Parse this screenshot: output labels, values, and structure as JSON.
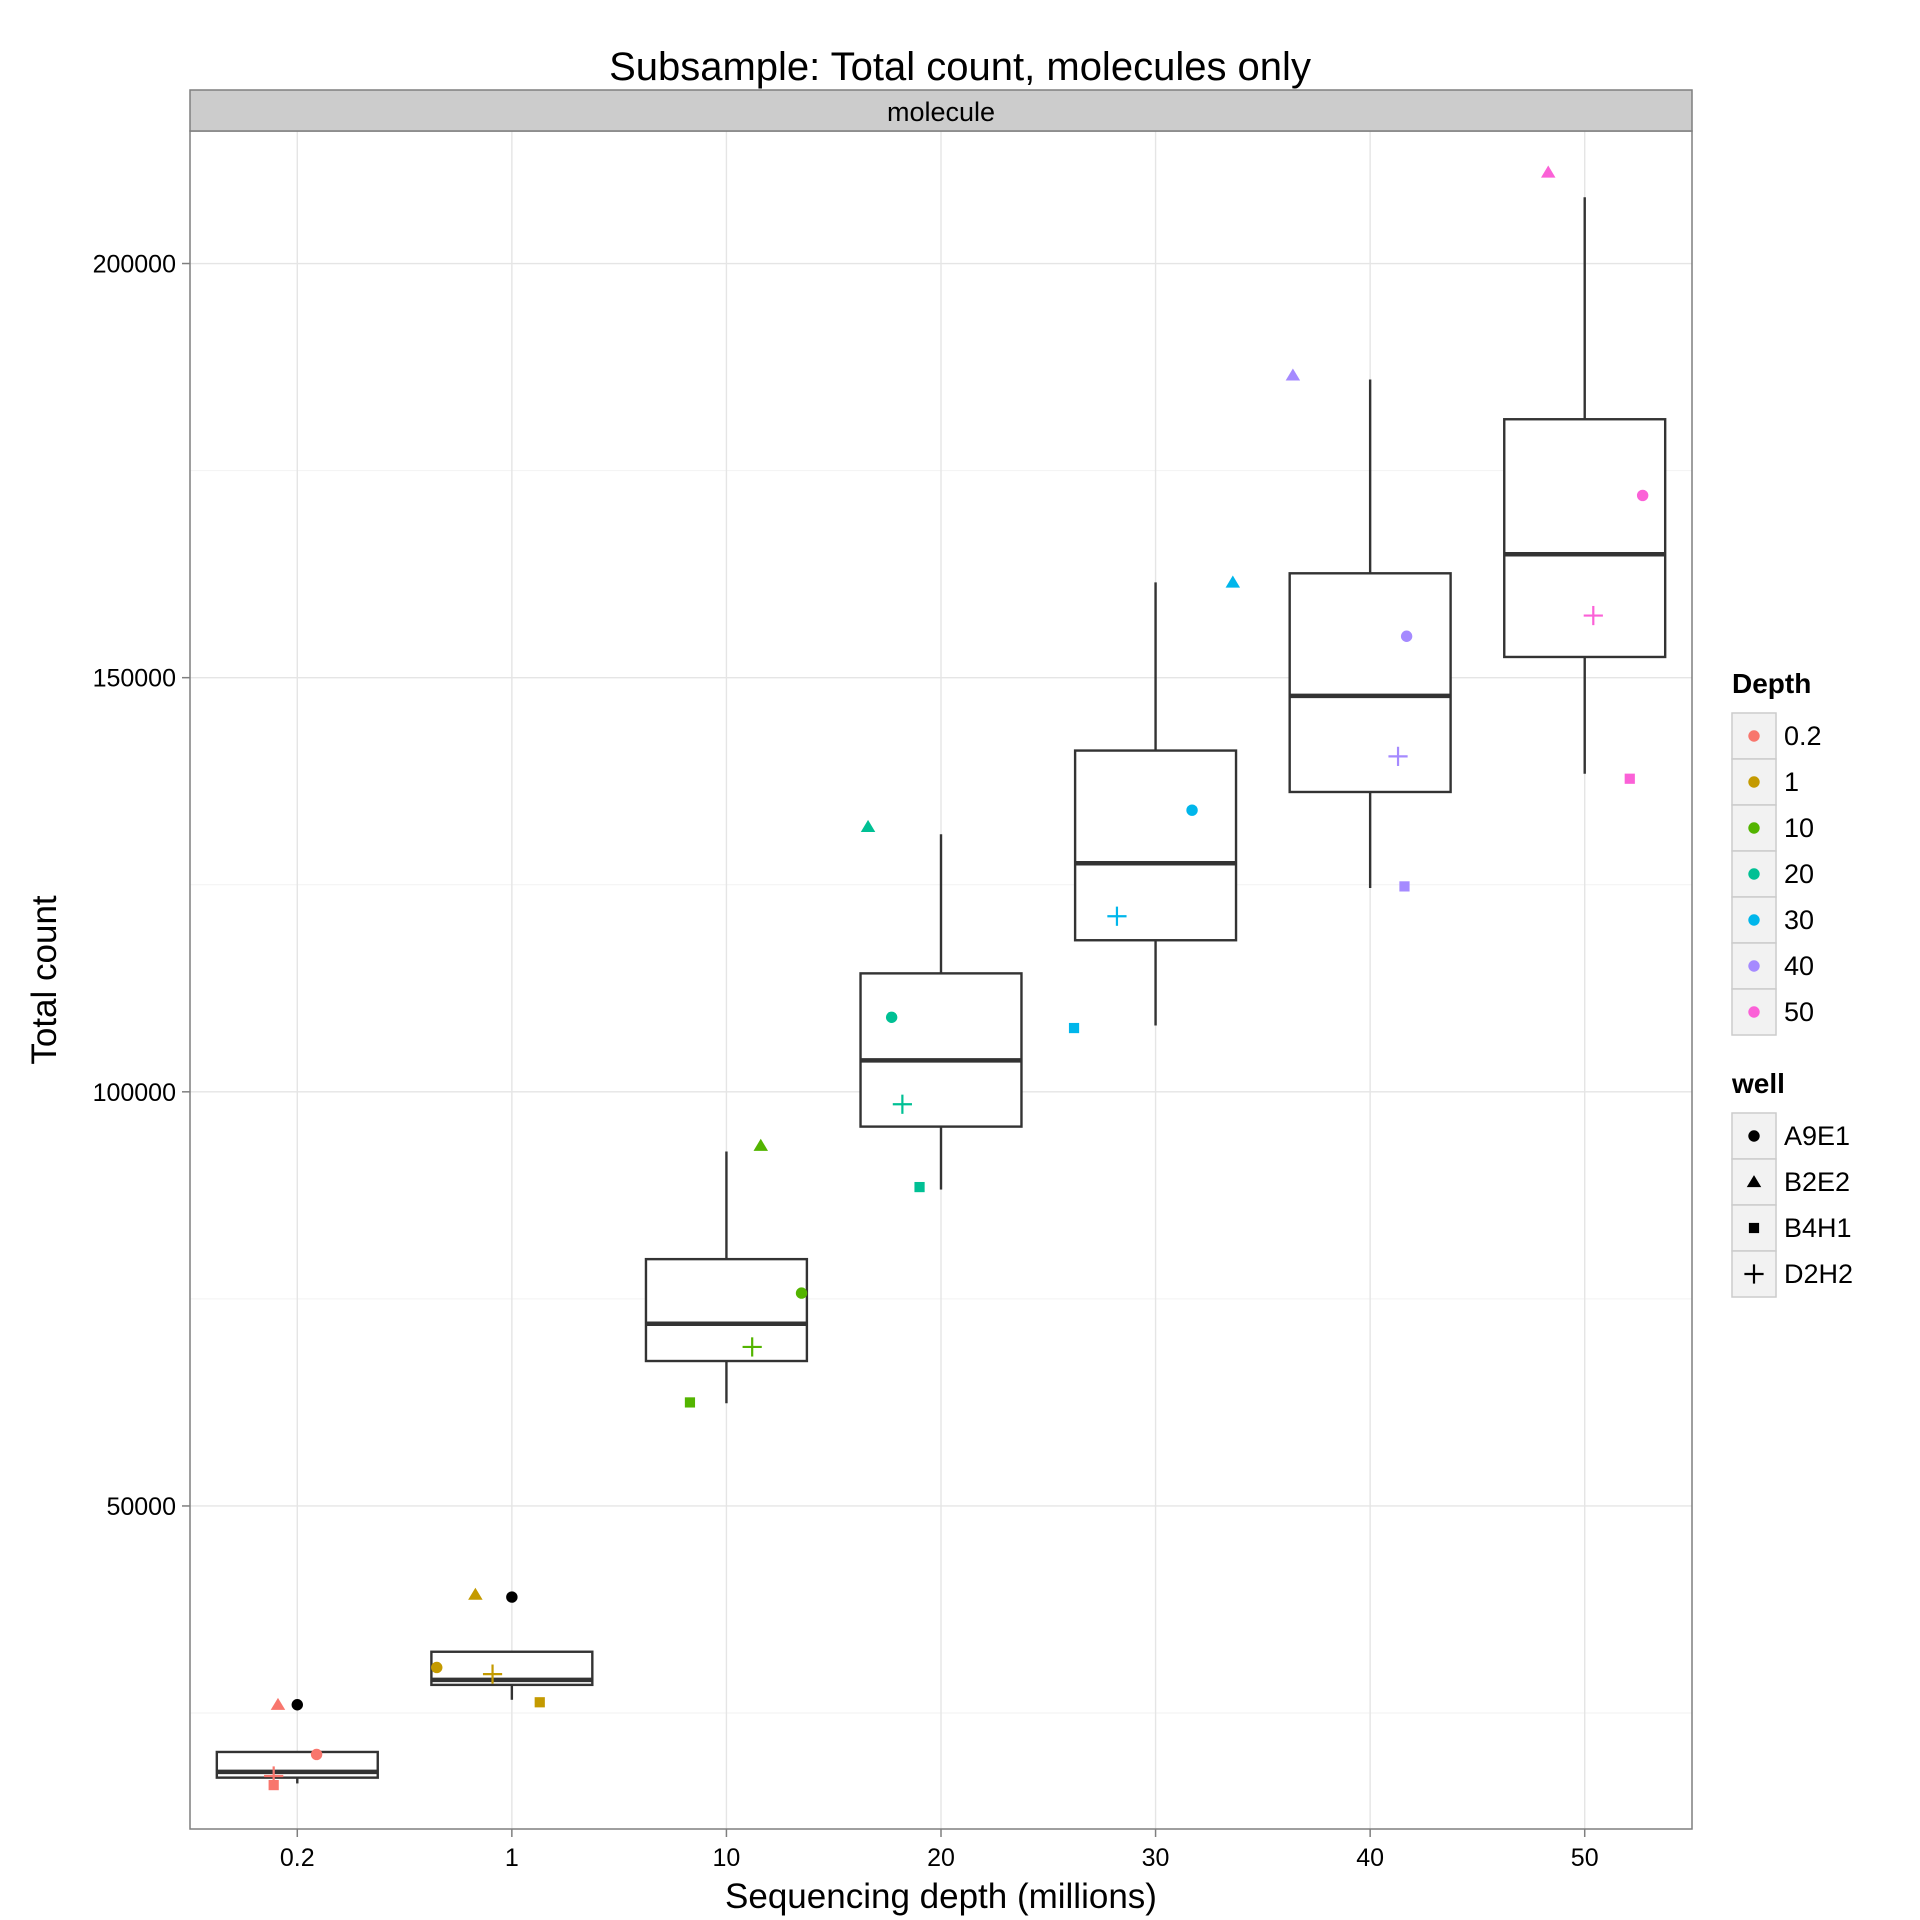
{
  "chart_data": {
    "type": "box",
    "title": "Subsample: Total count, molecules only",
    "facet_label": "molecule",
    "xlabel": "Sequencing depth (millions)",
    "ylabel": "Total count",
    "categories": [
      "0.2",
      "1",
      "10",
      "20",
      "30",
      "40",
      "50"
    ],
    "y_ticks": [
      50000,
      100000,
      150000,
      200000
    ],
    "ylim": [
      11000,
      216000
    ],
    "grid": true,
    "legend_position": "right",
    "boxes": [
      {
        "depth": "0.2",
        "lower_whisker": 16500,
        "q1": 17200,
        "median": 17900,
        "q3": 20300,
        "upper_whisker": 20300
      },
      {
        "depth": "1",
        "lower_whisker": 26600,
        "q1": 28400,
        "median": 29000,
        "q3": 32400,
        "upper_whisker": 32400
      },
      {
        "depth": "10",
        "lower_whisker": 62400,
        "q1": 67500,
        "median": 72000,
        "q3": 79800,
        "upper_whisker": 92800
      },
      {
        "depth": "20",
        "lower_whisker": 88200,
        "q1": 95800,
        "median": 103800,
        "q3": 114300,
        "upper_whisker": 131100
      },
      {
        "depth": "30",
        "lower_whisker": 108000,
        "q1": 118300,
        "median": 127600,
        "q3": 141200,
        "upper_whisker": 161500
      },
      {
        "depth": "40",
        "lower_whisker": 124600,
        "q1": 136200,
        "median": 147800,
        "q3": 162600,
        "upper_whisker": 186000
      },
      {
        "depth": "50",
        "lower_whisker": 138400,
        "q1": 152500,
        "median": 164900,
        "q3": 181200,
        "upper_whisker": 208000
      }
    ],
    "points": [
      {
        "depth": "0.2",
        "well": "A9E1",
        "value": 26000,
        "jitter": 0.0
      },
      {
        "depth": "0.2",
        "well": "A9E1",
        "value": 20000,
        "jitter": 0.09
      },
      {
        "depth": "0.2",
        "well": "B2E2",
        "value": 26000,
        "jitter": -0.09
      },
      {
        "depth": "0.2",
        "well": "B4H1",
        "value": 16300,
        "jitter": -0.11
      },
      {
        "depth": "0.2",
        "well": "D2H2",
        "value": 17400,
        "jitter": -0.11
      },
      {
        "depth": "1",
        "well": "A9E1",
        "value": 39000,
        "jitter": 0.0
      },
      {
        "depth": "1",
        "well": "A9E1",
        "value": 30500,
        "jitter": -0.35
      },
      {
        "depth": "1",
        "well": "B2E2",
        "value": 39300,
        "jitter": -0.17
      },
      {
        "depth": "1",
        "well": "B4H1",
        "value": 26300,
        "jitter": 0.13
      },
      {
        "depth": "1",
        "well": "D2H2",
        "value": 29700,
        "jitter": -0.09
      },
      {
        "depth": "10",
        "well": "A9E1",
        "value": 75700,
        "jitter": 0.35
      },
      {
        "depth": "10",
        "well": "B2E2",
        "value": 93500,
        "jitter": 0.16
      },
      {
        "depth": "10",
        "well": "B4H1",
        "value": 62500,
        "jitter": -0.17
      },
      {
        "depth": "10",
        "well": "D2H2",
        "value": 69200,
        "jitter": 0.12
      },
      {
        "depth": "20",
        "well": "A9E1",
        "value": 109000,
        "jitter": -0.23
      },
      {
        "depth": "20",
        "well": "B2E2",
        "value": 132000,
        "jitter": -0.34
      },
      {
        "depth": "20",
        "well": "B4H1",
        "value": 88500,
        "jitter": -0.1
      },
      {
        "depth": "20",
        "well": "D2H2",
        "value": 98500,
        "jitter": -0.18
      },
      {
        "depth": "30",
        "well": "A9E1",
        "value": 134000,
        "jitter": 0.17
      },
      {
        "depth": "30",
        "well": "B2E2",
        "value": 161500,
        "jitter": 0.36
      },
      {
        "depth": "30",
        "well": "B4H1",
        "value": 107700,
        "jitter": -0.38
      },
      {
        "depth": "30",
        "well": "D2H2",
        "value": 121200,
        "jitter": -0.18
      },
      {
        "depth": "40",
        "well": "A9E1",
        "value": 155000,
        "jitter": 0.17
      },
      {
        "depth": "40",
        "well": "B2E2",
        "value": 186500,
        "jitter": -0.36
      },
      {
        "depth": "40",
        "well": "B4H1",
        "value": 124800,
        "jitter": 0.16
      },
      {
        "depth": "40",
        "well": "D2H2",
        "value": 140500,
        "jitter": 0.13
      },
      {
        "depth": "50",
        "well": "A9E1",
        "value": 172000,
        "jitter": 0.27
      },
      {
        "depth": "50",
        "well": "B2E2",
        "value": 211000,
        "jitter": -0.17
      },
      {
        "depth": "50",
        "well": "B4H1",
        "value": 137800,
        "jitter": 0.21
      },
      {
        "depth": "50",
        "well": "D2H2",
        "value": 157500,
        "jitter": 0.04
      }
    ],
    "depth_point_colors": [
      "#000000",
      "#F8766D",
      "#C49A00",
      "#53B400",
      "#00C094",
      "#00B6EB",
      "#A58AFF",
      "#FB61D7"
    ],
    "color_legend": {
      "title": "Depth",
      "entries": [
        {
          "label": "0.2",
          "color": "#F8766D"
        },
        {
          "label": "1",
          "color": "#C49A00"
        },
        {
          "label": "10",
          "color": "#53B400"
        },
        {
          "label": "20",
          "color": "#00C094"
        },
        {
          "label": "30",
          "color": "#00B6EB"
        },
        {
          "label": "40",
          "color": "#A58AFF"
        },
        {
          "label": "50",
          "color": "#FB61D7"
        }
      ]
    },
    "shape_legend": {
      "title": "well",
      "entries": [
        {
          "label": "A9E1",
          "shape": "circle"
        },
        {
          "label": "B2E2",
          "shape": "triangle"
        },
        {
          "label": "B4H1",
          "shape": "square"
        },
        {
          "label": "D2H2",
          "shape": "plus"
        }
      ]
    }
  }
}
